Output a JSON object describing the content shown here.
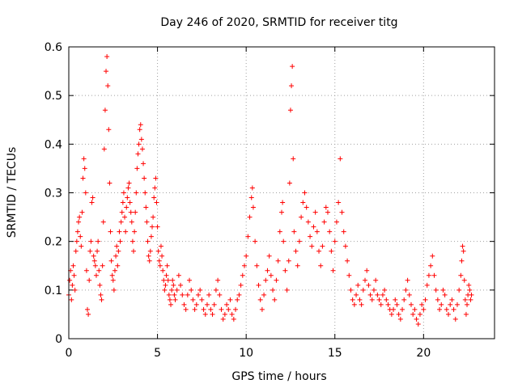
{
  "chart_data": {
    "type": "scatter",
    "title": "Day 246 of 2020, SRMTID for receiver titg",
    "xlabel": "GPS time / hours",
    "ylabel": "SRMTID / TECUs",
    "xlim": [
      0,
      24
    ],
    "ylim": [
      0,
      0.6
    ],
    "xticks": [
      0,
      5,
      10,
      15,
      20
    ],
    "yticks": [
      0,
      0.1,
      0.2,
      0.3,
      0.4,
      0.5,
      0.6
    ],
    "xtick_labels": [
      "0",
      "5",
      "10",
      "15",
      "20"
    ],
    "ytick_labels": [
      "0",
      "0.1",
      "0.2",
      "0.3",
      "0.4",
      "0.5",
      "0.6"
    ],
    "grid": true,
    "marker": "+",
    "color": "#ff0000",
    "series": [
      {
        "name": "SRMTID",
        "points": [
          [
            0.0,
            0.09
          ],
          [
            0.05,
            0.12
          ],
          [
            0.1,
            0.14
          ],
          [
            0.15,
            0.08
          ],
          [
            0.2,
            0.11
          ],
          [
            0.25,
            0.15
          ],
          [
            0.3,
            0.13
          ],
          [
            0.35,
            0.1
          ],
          [
            0.4,
            0.18
          ],
          [
            0.45,
            0.2
          ],
          [
            0.5,
            0.22
          ],
          [
            0.55,
            0.24
          ],
          [
            0.6,
            0.25
          ],
          [
            0.65,
            0.21
          ],
          [
            0.7,
            0.19
          ],
          [
            0.75,
            0.26
          ],
          [
            0.8,
            0.33
          ],
          [
            0.85,
            0.37
          ],
          [
            0.9,
            0.35
          ],
          [
            0.95,
            0.3
          ],
          [
            1.0,
            0.14
          ],
          [
            1.05,
            0.06
          ],
          [
            1.1,
            0.05
          ],
          [
            1.15,
            0.12
          ],
          [
            1.2,
            0.18
          ],
          [
            1.25,
            0.2
          ],
          [
            1.3,
            0.28
          ],
          [
            1.35,
            0.29
          ],
          [
            1.4,
            0.17
          ],
          [
            1.45,
            0.16
          ],
          [
            1.5,
            0.15
          ],
          [
            1.55,
            0.13
          ],
          [
            1.6,
            0.18
          ],
          [
            1.65,
            0.2
          ],
          [
            1.7,
            0.14
          ],
          [
            1.75,
            0.11
          ],
          [
            1.8,
            0.09
          ],
          [
            1.85,
            0.08
          ],
          [
            1.9,
            0.15
          ],
          [
            1.95,
            0.24
          ],
          [
            2.0,
            0.39
          ],
          [
            2.05,
            0.47
          ],
          [
            2.1,
            0.55
          ],
          [
            2.15,
            0.58
          ],
          [
            2.2,
            0.52
          ],
          [
            2.25,
            0.43
          ],
          [
            2.3,
            0.32
          ],
          [
            2.35,
            0.22
          ],
          [
            2.4,
            0.16
          ],
          [
            2.45,
            0.13
          ],
          [
            2.5,
            0.12
          ],
          [
            2.55,
            0.1
          ],
          [
            2.6,
            0.14
          ],
          [
            2.65,
            0.17
          ],
          [
            2.7,
            0.19
          ],
          [
            2.75,
            0.15
          ],
          [
            2.8,
            0.18
          ],
          [
            2.85,
            0.22
          ],
          [
            2.9,
            0.2
          ],
          [
            2.95,
            0.24
          ],
          [
            3.0,
            0.26
          ],
          [
            3.05,
            0.28
          ],
          [
            3.1,
            0.3
          ],
          [
            3.15,
            0.25
          ],
          [
            3.2,
            0.22
          ],
          [
            3.25,
            0.27
          ],
          [
            3.3,
            0.29
          ],
          [
            3.35,
            0.31
          ],
          [
            3.4,
            0.32
          ],
          [
            3.45,
            0.28
          ],
          [
            3.5,
            0.26
          ],
          [
            3.55,
            0.24
          ],
          [
            3.6,
            0.2
          ],
          [
            3.65,
            0.18
          ],
          [
            3.7,
            0.22
          ],
          [
            3.75,
            0.26
          ],
          [
            3.8,
            0.3
          ],
          [
            3.85,
            0.35
          ],
          [
            3.9,
            0.38
          ],
          [
            3.95,
            0.4
          ],
          [
            4.0,
            0.43
          ],
          [
            4.05,
            0.44
          ],
          [
            4.1,
            0.41
          ],
          [
            4.15,
            0.39
          ],
          [
            4.2,
            0.36
          ],
          [
            4.25,
            0.33
          ],
          [
            4.3,
            0.3
          ],
          [
            4.35,
            0.27
          ],
          [
            4.4,
            0.24
          ],
          [
            4.45,
            0.2
          ],
          [
            4.5,
            0.17
          ],
          [
            4.55,
            0.16
          ],
          [
            4.6,
            0.18
          ],
          [
            4.65,
            0.21
          ],
          [
            4.7,
            0.23
          ],
          [
            4.75,
            0.25
          ],
          [
            4.8,
            0.29
          ],
          [
            4.85,
            0.31
          ],
          [
            4.9,
            0.33
          ],
          [
            4.95,
            0.28
          ],
          [
            5.0,
            0.23
          ],
          [
            5.05,
            0.18
          ],
          [
            5.1,
            0.16
          ],
          [
            5.15,
            0.15
          ],
          [
            5.2,
            0.19
          ],
          [
            5.25,
            0.17
          ],
          [
            5.3,
            0.14
          ],
          [
            5.35,
            0.12
          ],
          [
            5.4,
            0.1
          ],
          [
            5.45,
            0.11
          ],
          [
            5.5,
            0.13
          ],
          [
            5.55,
            0.15
          ],
          [
            5.6,
            0.12
          ],
          [
            5.65,
            0.09
          ],
          [
            5.7,
            0.08
          ],
          [
            5.75,
            0.07
          ],
          [
            5.8,
            0.1
          ],
          [
            5.85,
            0.12
          ],
          [
            5.9,
            0.11
          ],
          [
            5.95,
            0.09
          ],
          [
            6.0,
            0.08
          ],
          [
            6.1,
            0.1
          ],
          [
            6.2,
            0.13
          ],
          [
            6.3,
            0.11
          ],
          [
            6.4,
            0.09
          ],
          [
            6.5,
            0.07
          ],
          [
            6.6,
            0.06
          ],
          [
            6.7,
            0.09
          ],
          [
            6.8,
            0.12
          ],
          [
            6.9,
            0.1
          ],
          [
            7.0,
            0.08
          ],
          [
            7.1,
            0.06
          ],
          [
            7.2,
            0.07
          ],
          [
            7.3,
            0.09
          ],
          [
            7.4,
            0.1
          ],
          [
            7.5,
            0.08
          ],
          [
            7.6,
            0.06
          ],
          [
            7.7,
            0.05
          ],
          [
            7.8,
            0.07
          ],
          [
            7.9,
            0.09
          ],
          [
            8.0,
            0.06
          ],
          [
            8.1,
            0.05
          ],
          [
            8.2,
            0.07
          ],
          [
            8.3,
            0.1
          ],
          [
            8.4,
            0.12
          ],
          [
            8.5,
            0.09
          ],
          [
            8.6,
            0.06
          ],
          [
            8.7,
            0.04
          ],
          [
            8.8,
            0.05
          ],
          [
            8.9,
            0.07
          ],
          [
            9.0,
            0.06
          ],
          [
            9.1,
            0.08
          ],
          [
            9.2,
            0.05
          ],
          [
            9.3,
            0.04
          ],
          [
            9.4,
            0.06
          ],
          [
            9.5,
            0.08
          ],
          [
            9.6,
            0.09
          ],
          [
            9.7,
            0.11
          ],
          [
            9.8,
            0.13
          ],
          [
            9.9,
            0.15
          ],
          [
            10.0,
            0.17
          ],
          [
            10.1,
            0.21
          ],
          [
            10.2,
            0.25
          ],
          [
            10.3,
            0.29
          ],
          [
            10.35,
            0.31
          ],
          [
            10.4,
            0.27
          ],
          [
            10.5,
            0.2
          ],
          [
            10.6,
            0.15
          ],
          [
            10.7,
            0.11
          ],
          [
            10.8,
            0.08
          ],
          [
            10.9,
            0.06
          ],
          [
            11.0,
            0.09
          ],
          [
            11.1,
            0.12
          ],
          [
            11.2,
            0.14
          ],
          [
            11.3,
            0.17
          ],
          [
            11.4,
            0.13
          ],
          [
            11.5,
            0.1
          ],
          [
            11.6,
            0.08
          ],
          [
            11.7,
            0.12
          ],
          [
            11.8,
            0.16
          ],
          [
            11.9,
            0.22
          ],
          [
            12.0,
            0.26
          ],
          [
            12.05,
            0.28
          ],
          [
            12.1,
            0.2
          ],
          [
            12.2,
            0.14
          ],
          [
            12.3,
            0.1
          ],
          [
            12.4,
            0.16
          ],
          [
            12.45,
            0.32
          ],
          [
            12.5,
            0.47
          ],
          [
            12.55,
            0.52
          ],
          [
            12.6,
            0.56
          ],
          [
            12.65,
            0.37
          ],
          [
            12.7,
            0.22
          ],
          [
            12.8,
            0.18
          ],
          [
            12.9,
            0.15
          ],
          [
            13.0,
            0.2
          ],
          [
            13.1,
            0.25
          ],
          [
            13.2,
            0.28
          ],
          [
            13.3,
            0.3
          ],
          [
            13.4,
            0.27
          ],
          [
            13.5,
            0.24
          ],
          [
            13.6,
            0.21
          ],
          [
            13.7,
            0.19
          ],
          [
            13.8,
            0.23
          ],
          [
            13.9,
            0.26
          ],
          [
            14.0,
            0.22
          ],
          [
            14.1,
            0.18
          ],
          [
            14.2,
            0.15
          ],
          [
            14.3,
            0.19
          ],
          [
            14.4,
            0.24
          ],
          [
            14.5,
            0.27
          ],
          [
            14.6,
            0.26
          ],
          [
            14.7,
            0.22
          ],
          [
            14.8,
            0.18
          ],
          [
            14.9,
            0.14
          ],
          [
            15.0,
            0.2
          ],
          [
            15.1,
            0.24
          ],
          [
            15.2,
            0.28
          ],
          [
            15.3,
            0.37
          ],
          [
            15.4,
            0.26
          ],
          [
            15.5,
            0.22
          ],
          [
            15.6,
            0.19
          ],
          [
            15.7,
            0.16
          ],
          [
            15.8,
            0.13
          ],
          [
            15.9,
            0.1
          ],
          [
            16.0,
            0.08
          ],
          [
            16.1,
            0.07
          ],
          [
            16.2,
            0.09
          ],
          [
            16.3,
            0.11
          ],
          [
            16.4,
            0.08
          ],
          [
            16.5,
            0.07
          ],
          [
            16.6,
            0.1
          ],
          [
            16.7,
            0.12
          ],
          [
            16.8,
            0.14
          ],
          [
            16.9,
            0.11
          ],
          [
            17.0,
            0.09
          ],
          [
            17.1,
            0.08
          ],
          [
            17.2,
            0.1
          ],
          [
            17.3,
            0.12
          ],
          [
            17.4,
            0.09
          ],
          [
            17.5,
            0.08
          ],
          [
            17.6,
            0.07
          ],
          [
            17.7,
            0.09
          ],
          [
            17.8,
            0.1
          ],
          [
            17.9,
            0.08
          ],
          [
            18.0,
            0.07
          ],
          [
            18.1,
            0.06
          ],
          [
            18.2,
            0.05
          ],
          [
            18.3,
            0.06
          ],
          [
            18.4,
            0.08
          ],
          [
            18.5,
            0.07
          ],
          [
            18.6,
            0.05
          ],
          [
            18.7,
            0.04
          ],
          [
            18.8,
            0.06
          ],
          [
            18.9,
            0.08
          ],
          [
            19.0,
            0.1
          ],
          [
            19.1,
            0.12
          ],
          [
            19.2,
            0.09
          ],
          [
            19.3,
            0.07
          ],
          [
            19.4,
            0.05
          ],
          [
            19.5,
            0.06
          ],
          [
            19.6,
            0.04
          ],
          [
            19.7,
            0.03
          ],
          [
            19.8,
            0.05
          ],
          [
            19.9,
            0.07
          ],
          [
            20.0,
            0.06
          ],
          [
            20.1,
            0.08
          ],
          [
            20.2,
            0.11
          ],
          [
            20.3,
            0.13
          ],
          [
            20.4,
            0.15
          ],
          [
            20.5,
            0.17
          ],
          [
            20.6,
            0.13
          ],
          [
            20.7,
            0.1
          ],
          [
            20.8,
            0.08
          ],
          [
            20.9,
            0.06
          ],
          [
            21.0,
            0.07
          ],
          [
            21.1,
            0.1
          ],
          [
            21.2,
            0.09
          ],
          [
            21.3,
            0.06
          ],
          [
            21.4,
            0.05
          ],
          [
            21.5,
            0.07
          ],
          [
            21.6,
            0.08
          ],
          [
            21.7,
            0.06
          ],
          [
            21.8,
            0.04
          ],
          [
            21.9,
            0.07
          ],
          [
            22.0,
            0.1
          ],
          [
            22.1,
            0.13
          ],
          [
            22.15,
            0.16
          ],
          [
            22.2,
            0.19
          ],
          [
            22.25,
            0.18
          ],
          [
            22.3,
            0.12
          ],
          [
            22.35,
            0.08
          ],
          [
            22.4,
            0.05
          ],
          [
            22.45,
            0.07
          ],
          [
            22.5,
            0.09
          ],
          [
            22.55,
            0.11
          ],
          [
            22.6,
            0.1
          ],
          [
            22.65,
            0.08
          ],
          [
            22.7,
            0.09
          ]
        ]
      }
    ]
  }
}
